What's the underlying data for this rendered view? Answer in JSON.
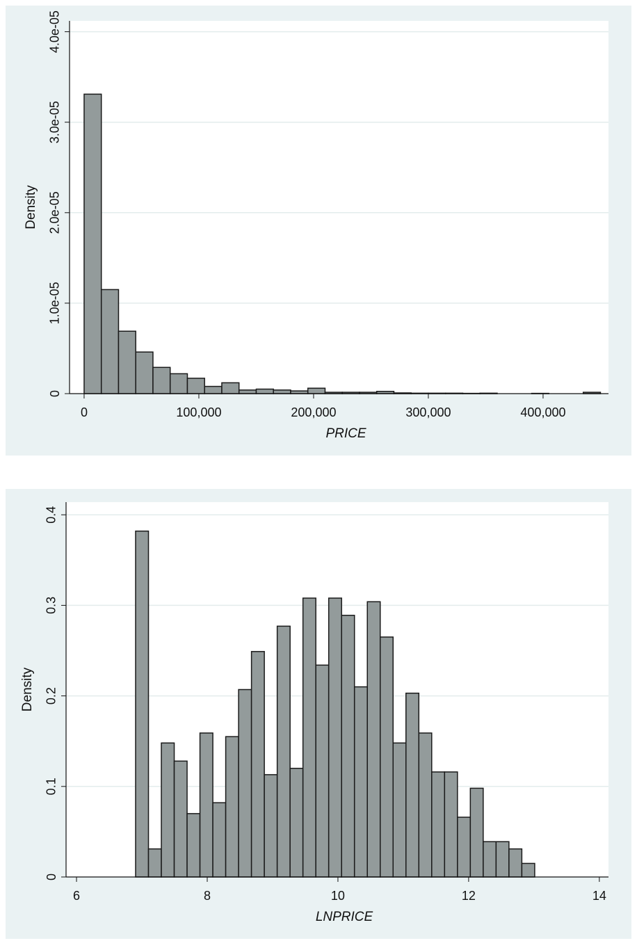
{
  "chart_data": [
    {
      "type": "histogram",
      "x_label": "PRICE",
      "y_label": "Density",
      "color": "#939b9b",
      "grid": true,
      "bins": [
        0,
        15000,
        30000,
        45000,
        60000,
        75000,
        90000,
        105000,
        120000,
        135000,
        150000,
        165000,
        180000,
        195000,
        210000,
        225000,
        240000,
        255000,
        270000,
        285000,
        300000,
        315000,
        330000,
        345000,
        360000,
        375000,
        390000,
        405000,
        420000,
        435000,
        450000
      ],
      "values": [
        3.31e-05,
        1.15e-05,
        6.9e-06,
        4.6e-06,
        2.9e-06,
        2.2e-06,
        1.7e-06,
        8e-07,
        1.2e-06,
        4e-07,
        5e-07,
        4e-07,
        3e-07,
        6e-07,
        1.5e-07,
        1.5e-07,
        1.5e-07,
        2.5e-07,
        8e-08,
        5e-08,
        5e-08,
        5e-08,
        3e-08,
        5e-08,
        0,
        0,
        3e-08,
        0,
        0,
        1.5e-07
      ],
      "xlim": [
        -12700,
        457000
      ],
      "ylim": [
        0,
        4.12e-05
      ],
      "xticks": [
        0,
        {
          "value": 100000,
          "label": "100,000"
        },
        {
          "value": 200000,
          "label": "200,000"
        },
        {
          "value": 300000,
          "label": "300,000"
        },
        {
          "value": 400000,
          "label": "400,000"
        }
      ],
      "yticks": [
        0,
        {
          "value": 1e-05,
          "label": "1.0e-05"
        },
        {
          "value": 2e-05,
          "label": "2.0e-05"
        },
        {
          "value": 3e-05,
          "label": "3.0e-05"
        },
        {
          "value": 4e-05,
          "label": "4.0e-05"
        }
      ]
    },
    {
      "type": "histogram",
      "x_label": "LNPRICE",
      "y_label": "Density",
      "color": "#939b9b",
      "grid": true,
      "bins": [
        6.904,
        7.101,
        7.298,
        7.495,
        7.692,
        7.889,
        8.086,
        8.283,
        8.48,
        8.677,
        8.874,
        9.071,
        9.268,
        9.465,
        9.662,
        9.859,
        10.056,
        10.253,
        10.45,
        10.647,
        10.844,
        11.041,
        11.238,
        11.435,
        11.632,
        11.829,
        12.026,
        12.223,
        12.42,
        12.617,
        12.814,
        13.011
      ],
      "values": [
        0.382,
        0.031,
        0.148,
        0.128,
        0.07,
        0.159,
        0.082,
        0.155,
        0.207,
        0.249,
        0.113,
        0.277,
        0.12,
        0.308,
        0.234,
        0.308,
        0.289,
        0.21,
        0.304,
        0.265,
        0.148,
        0.203,
        0.159,
        0.116,
        0.116,
        0.066,
        0.098,
        0.039,
        0.039,
        0.031,
        0.015
      ],
      "xlim": [
        5.84,
        14.14
      ],
      "ylim": [
        0,
        0.414
      ],
      "xticks": [
        6,
        8,
        10,
        12,
        14
      ],
      "yticks": [
        0,
        0.1,
        0.2,
        0.3,
        0.4
      ]
    }
  ]
}
